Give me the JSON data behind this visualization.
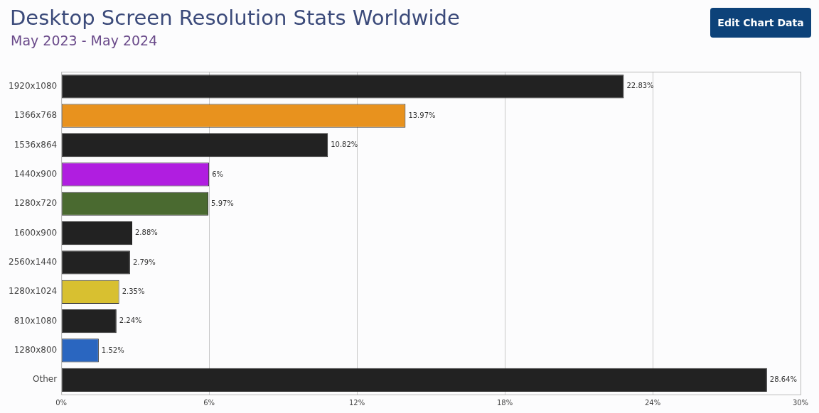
{
  "chart_data": {
    "type": "bar",
    "orientation": "horizontal",
    "title": "Desktop Screen Resolution Stats Worldwide",
    "subtitle": "May 2023 - May 2024",
    "annotations": [
      "Edit Chart Data"
    ],
    "categories": [
      "1920x1080",
      "1366x768",
      "1536x864",
      "1440x900",
      "1280x720",
      "1600x900",
      "2560x1440",
      "1280x1024",
      "810x1080",
      "1280x800",
      "Other"
    ],
    "values": [
      22.83,
      13.97,
      10.82,
      6,
      5.97,
      2.88,
      2.79,
      2.35,
      2.24,
      1.52,
      28.64
    ],
    "value_labels": [
      "22.83%",
      "13.97%",
      "10.82%",
      "6%",
      "5.97%",
      "2.88%",
      "2.79%",
      "2.35%",
      "2.24%",
      "1.52%",
      "28.64%"
    ],
    "colors": [
      "#222222",
      "#e8921e",
      "#222222",
      "#b01ee0",
      "#4a6a30",
      "#222222",
      "#222222",
      "#d8c030",
      "#222222",
      "#2a66c0",
      "#222222"
    ],
    "xlim": [
      0,
      30
    ],
    "xticks": [
      {
        "value": 0,
        "label": "0%"
      },
      {
        "value": 6,
        "label": "6%"
      },
      {
        "value": 12,
        "label": "12%"
      },
      {
        "value": 18,
        "label": "18%"
      },
      {
        "value": 24,
        "label": "24%"
      },
      {
        "value": 30,
        "label": "30%"
      }
    ],
    "grid": "x",
    "legend": false
  }
}
